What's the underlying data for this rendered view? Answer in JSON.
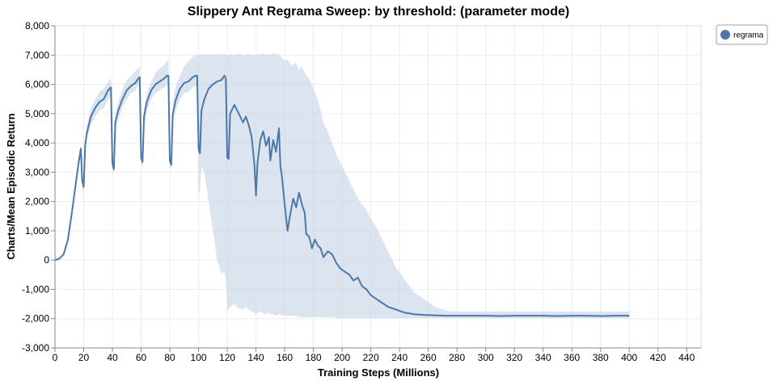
{
  "chart_data": {
    "type": "line",
    "title": "Slippery Ant Regrama Sweep: by threshold: (parameter mode)",
    "xlabel": "Training Steps (Millions)",
    "ylabel": "Charts/Mean Episodic Return",
    "xlim": [
      0,
      450
    ],
    "ylim": [
      -3000,
      8000
    ],
    "xticks": [
      0,
      20,
      40,
      60,
      80,
      100,
      120,
      140,
      160,
      180,
      200,
      220,
      240,
      260,
      280,
      300,
      320,
      340,
      360,
      380,
      400,
      420,
      440
    ],
    "yticks": [
      -3000,
      -2000,
      -1000,
      0,
      1000,
      2000,
      3000,
      4000,
      5000,
      6000,
      7000,
      8000
    ],
    "grid": true,
    "legend": {
      "placement": "top-right",
      "entries": [
        "regrama"
      ]
    },
    "colors": {
      "line": "#4c78a8",
      "band": "#c4d2e6"
    },
    "series": [
      {
        "name": "regrama",
        "x": [
          0,
          3,
          6,
          9,
          12,
          15,
          17,
          18,
          19,
          20,
          21,
          22,
          25,
          28,
          31,
          34,
          37,
          39,
          40,
          41,
          42,
          44,
          47,
          50,
          53,
          56,
          58,
          59,
          60,
          61,
          62,
          64,
          67,
          70,
          73,
          76,
          78,
          79,
          80,
          81,
          82,
          84,
          87,
          90,
          93,
          96,
          98,
          99,
          100,
          101,
          102,
          104,
          107,
          110,
          113,
          116,
          118,
          119,
          120,
          121,
          122,
          125,
          128,
          131,
          133,
          135,
          137,
          139,
          140,
          141,
          143,
          145,
          147,
          149,
          150,
          152,
          154,
          156,
          157,
          158,
          160,
          162,
          164,
          166,
          168,
          170,
          172,
          174,
          175,
          177,
          179,
          181,
          183,
          185,
          187,
          190,
          193,
          196,
          199,
          202,
          205,
          208,
          211,
          214,
          217,
          220,
          223,
          226,
          229,
          232,
          235,
          238,
          241,
          244,
          247,
          250,
          253,
          256,
          259,
          262,
          265,
          268,
          271,
          275,
          280,
          285,
          290,
          295,
          300,
          310,
          320,
          330,
          340,
          350,
          360,
          370,
          380,
          390,
          400
        ],
        "mean": [
          0,
          50,
          200,
          700,
          1700,
          2800,
          3500,
          3800,
          2700,
          2500,
          3900,
          4300,
          4900,
          5200,
          5400,
          5500,
          5800,
          5900,
          3300,
          3100,
          4700,
          5100,
          5500,
          5800,
          5950,
          6050,
          6200,
          6250,
          3500,
          3350,
          4900,
          5400,
          5800,
          6000,
          6100,
          6200,
          6300,
          6300,
          3400,
          3250,
          4950,
          5450,
          5850,
          6050,
          6100,
          6250,
          6300,
          6300,
          3800,
          3650,
          5100,
          5500,
          5850,
          6000,
          6100,
          6150,
          6300,
          6200,
          3500,
          3450,
          5000,
          5300,
          5000,
          4700,
          4900,
          4600,
          4200,
          3200,
          2200,
          3300,
          4100,
          4400,
          3900,
          4200,
          3400,
          4100,
          3700,
          4500,
          3200,
          2900,
          1900,
          1000,
          1600,
          2100,
          1800,
          2300,
          1900,
          1600,
          900,
          800,
          400,
          700,
          500,
          400,
          100,
          300,
          200,
          -100,
          -300,
          -400,
          -500,
          -700,
          -600,
          -900,
          -1000,
          -1200,
          -1300,
          -1400,
          -1500,
          -1600,
          -1650,
          -1700,
          -1750,
          -1800,
          -1820,
          -1850,
          -1860,
          -1870,
          -1880,
          -1880,
          -1890,
          -1890,
          -1900,
          -1900,
          -1900,
          -1900,
          -1900,
          -1900,
          -1900,
          -1910,
          -1900,
          -1900,
          -1900,
          -1910,
          -1900,
          -1900,
          -1910,
          -1900,
          -1900
        ],
        "lower": [
          0,
          40,
          180,
          650,
          1550,
          2600,
          3300,
          3500,
          2400,
          2300,
          3700,
          4100,
          4600,
          4900,
          5100,
          5200,
          5500,
          5600,
          3100,
          2900,
          4400,
          4800,
          5200,
          5500,
          5700,
          5800,
          5950,
          6000,
          3300,
          3150,
          4600,
          5100,
          5500,
          5700,
          5800,
          5900,
          6000,
          6000,
          3200,
          3050,
          4650,
          5100,
          5500,
          5700,
          5750,
          5900,
          5950,
          5950,
          2400,
          2300,
          3200,
          3000,
          2000,
          1000,
          0,
          -500,
          -400,
          -600,
          -1700,
          -1700,
          -1600,
          -1500,
          -1650,
          -1700,
          -1600,
          -1700,
          -1750,
          -1800,
          -1850,
          -1800,
          -1750,
          -1800,
          -1850,
          -1800,
          -1850,
          -1850,
          -1900,
          -1850,
          -1850,
          -1900,
          -1900,
          -1900,
          -1900,
          -1900,
          -1900,
          -1950,
          -1950,
          -1950,
          -1950,
          -1950,
          -1950,
          -1950,
          -1950,
          -1950,
          -1950,
          -1950,
          -1950,
          -1980,
          -1980,
          -1980,
          -1980,
          -1980,
          -1980,
          -1980,
          -1980,
          -1980,
          -1980,
          -1980,
          -1980,
          -1980,
          -1980,
          -1980,
          -1980,
          -1980,
          -1980,
          -1980,
          -1980,
          -1980,
          -1980,
          -1980,
          -1980,
          -1980,
          -1980,
          -1980,
          -1980,
          -1980,
          -1980,
          -1980,
          -1980,
          -1980,
          -1980,
          -1980,
          -1980,
          -1980,
          -1980,
          -1980,
          -1980,
          -1980,
          -1980
        ],
        "upper": [
          0,
          60,
          220,
          750,
          1850,
          3000,
          3700,
          3950,
          3000,
          2800,
          4100,
          4550,
          5200,
          5500,
          5750,
          5850,
          6100,
          6200,
          3600,
          3400,
          5000,
          5400,
          5850,
          6150,
          6300,
          6450,
          6550,
          6600,
          3750,
          3600,
          5200,
          5700,
          6100,
          6400,
          6550,
          6650,
          6800,
          6850,
          3650,
          3500,
          5300,
          5900,
          6300,
          6600,
          6800,
          6950,
          7000,
          7000,
          7000,
          7000,
          7050,
          7000,
          7050,
          7000,
          7050,
          7000,
          7050,
          7000,
          7000,
          7000,
          7050,
          7000,
          7050,
          7000,
          7000,
          7050,
          7000,
          7000,
          7000,
          7050,
          7000,
          7050,
          7000,
          7050,
          7000,
          7050,
          7050,
          7000,
          7000,
          6900,
          6800,
          6850,
          6700,
          6650,
          6750,
          6500,
          6600,
          6400,
          6300,
          6200,
          6000,
          5700,
          5500,
          5100,
          4700,
          4400,
          4000,
          3600,
          3300,
          3000,
          2700,
          2400,
          2100,
          1900,
          1700,
          1400,
          1200,
          900,
          600,
          300,
          0,
          -300,
          -500,
          -700,
          -900,
          -1100,
          -1200,
          -1300,
          -1400,
          -1500,
          -1600,
          -1650,
          -1700,
          -1750,
          -1750,
          -1750,
          -1760,
          -1750,
          -1760,
          -1750,
          -1760,
          -1760,
          -1750,
          -1760,
          -1760,
          -1760,
          -1760,
          -1760,
          -1760
        ]
      }
    ]
  }
}
